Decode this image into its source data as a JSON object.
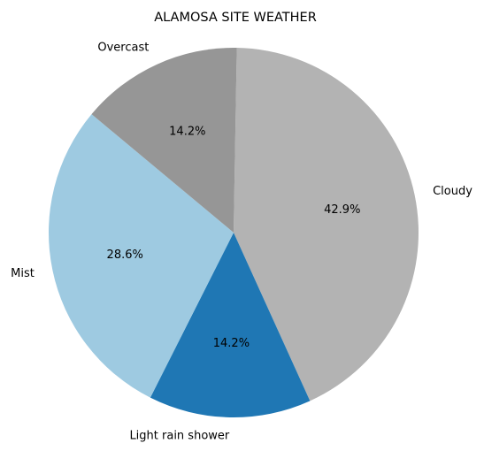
{
  "chart_data": {
    "type": "pie",
    "title": "ALAMOSA SITE WEATHER",
    "slices": [
      {
        "label": "Cloudy",
        "value": 42.9,
        "pct_label": "42.9%",
        "color": "#b3b3b3"
      },
      {
        "label": "Light rain shower",
        "value": 14.2,
        "pct_label": "14.2%",
        "color": "#1f77b4"
      },
      {
        "label": "Mist",
        "value": 28.6,
        "pct_label": "28.6%",
        "color": "#9ecae1"
      },
      {
        "label": "Overcast",
        "value": 14.2,
        "pct_label": "14.2%",
        "color": "#969696"
      }
    ],
    "start_angle_deg": 89,
    "direction": "clockwise",
    "legend": "none"
  }
}
